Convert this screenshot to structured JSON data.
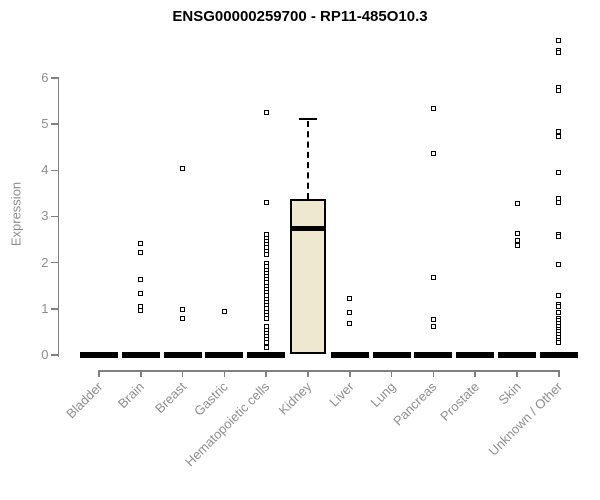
{
  "chart_data": {
    "type": "boxplot",
    "title": "ENSG00000259700 - RP11-485O10.3",
    "ylabel": "Expression",
    "xlabel": "",
    "grid": false,
    "legend": "none",
    "y_axis": {
      "ticks": [
        0,
        1,
        2,
        3,
        4,
        5,
        6
      ],
      "range": [
        0,
        6.9
      ]
    },
    "categories": [
      "Bladder",
      "Brain",
      "Breast",
      "Gastric",
      "Hematopoietic cells",
      "Kidney",
      "Liver",
      "Lung",
      "Pancreas",
      "Prostate",
      "Skin",
      "Unknown / Other"
    ],
    "boxes": [
      {
        "category": "Bladder",
        "q1": 0,
        "median": 0,
        "q3": 0,
        "outliers": []
      },
      {
        "category": "Brain",
        "q1": 0,
        "median": 0,
        "q3": 0,
        "outliers": [
          2.42,
          2.23,
          1.64,
          1.34,
          1.05,
          0.97
        ]
      },
      {
        "category": "Breast",
        "q1": 0,
        "median": 0,
        "q3": 0,
        "outliers": [
          4.05,
          0.99,
          0.8
        ]
      },
      {
        "category": "Gastric",
        "q1": 0,
        "median": 0,
        "q3": 0,
        "outliers": [
          0.95
        ]
      },
      {
        "category": "Hematopoietic cells",
        "q1": 0,
        "median": 0,
        "q3": 0,
        "outliers": [
          5.26,
          3.3,
          2.6,
          2.53,
          2.46,
          2.39,
          2.32,
          2.25,
          2.18,
          1.98,
          1.91,
          1.84,
          1.77,
          1.7,
          1.63,
          1.56,
          1.49,
          1.42,
          1.35,
          1.28,
          1.21,
          1.14,
          1.07,
          1.0,
          0.93,
          0.86,
          0.79,
          0.61,
          0.54,
          0.47,
          0.4,
          0.33,
          0.26,
          0.17
        ]
      },
      {
        "category": "Kidney",
        "q1": 0.02,
        "median": 2.74,
        "q3": 3.38,
        "whisker_high": 5.12,
        "outliers": []
      },
      {
        "category": "Liver",
        "q1": 0,
        "median": 0,
        "q3": 0,
        "outliers": [
          1.23,
          0.91,
          0.69
        ]
      },
      {
        "category": "Lung",
        "q1": 0,
        "median": 0,
        "q3": 0,
        "outliers": []
      },
      {
        "category": "Pancreas",
        "q1": 0,
        "median": 0,
        "q3": 0,
        "outliers": [
          5.34,
          4.37,
          1.67,
          0.76,
          0.61
        ]
      },
      {
        "category": "Prostate",
        "q1": 0,
        "median": 0,
        "q3": 0,
        "outliers": []
      },
      {
        "category": "Skin",
        "q1": 0,
        "median": 0,
        "q3": 0,
        "outliers": [
          3.29,
          2.64,
          2.49,
          2.38
        ]
      },
      {
        "category": "Unknown / Other",
        "q1": 0,
        "median": 0,
        "q3": 0,
        "outliers": [
          6.82,
          6.6,
          6.55,
          5.8,
          5.73,
          4.83,
          4.74,
          3.96,
          3.4,
          3.3,
          2.62,
          2.57,
          1.95,
          1.28,
          1.1,
          1.04,
          0.93,
          0.8,
          0.74,
          0.68,
          0.62,
          0.56,
          0.5,
          0.44,
          0.38,
          0.32,
          0.26
        ]
      }
    ],
    "colors": {
      "box_fill": "#ede8cf",
      "box_border": "#000000",
      "median": "#000000",
      "outlier": "#000000",
      "axis_line": "#808080",
      "tick_label": "#8e8e8e",
      "title": "#000000"
    }
  }
}
